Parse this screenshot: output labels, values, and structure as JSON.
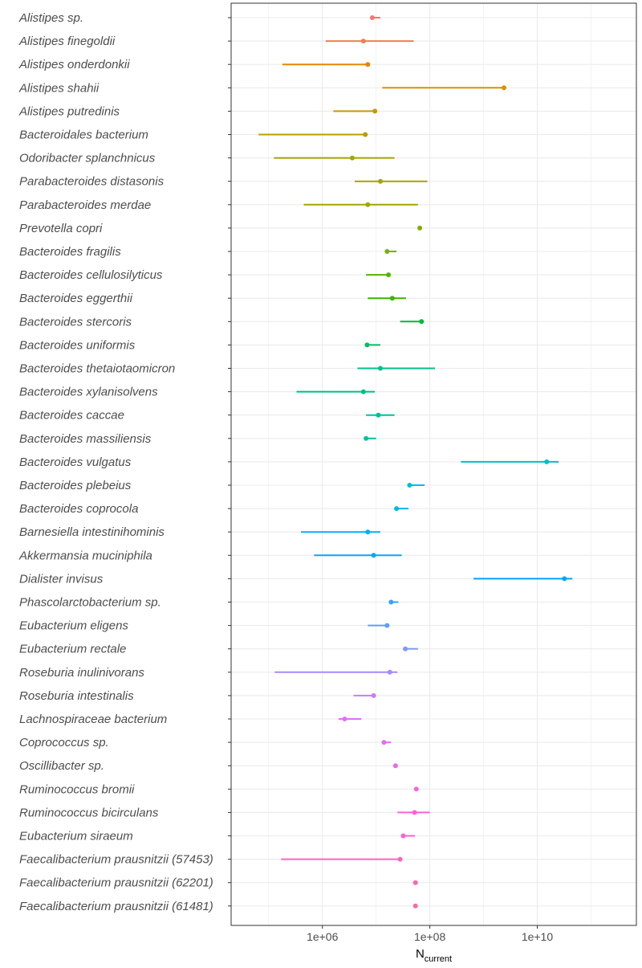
{
  "chart_data": {
    "type": "scatter",
    "subtype": "point-range (dot with horizontal interval)",
    "xscale": "log10",
    "xlim": [
      20000,
      700000000000
    ],
    "xticks": [
      {
        "value": 1000000,
        "label": "1e+06"
      },
      {
        "value": 100000000,
        "label": "1e+08"
      },
      {
        "value": 10000000000,
        "label": "1e+10"
      }
    ],
    "xlabel": "N",
    "xlabel_subscript": "current",
    "ylabel": "",
    "grid": true,
    "legend": "none",
    "colors": {
      "background": "#ffffff",
      "grid": "#ebebeb",
      "panel_border": "#333333",
      "tick_text": "#4d4d4d",
      "axis_title": "#000000"
    },
    "categories": [
      "Alistipes sp.",
      "Alistipes finegoldii",
      "Alistipes onderdonkii",
      "Alistipes shahii",
      "Alistipes putredinis",
      "Bacteroidales bacterium",
      "Odoribacter splanchnicus",
      "Parabacteroides distasonis",
      "Parabacteroides merdae",
      "Prevotella copri",
      "Bacteroides fragilis",
      "Bacteroides cellulosilyticus",
      "Bacteroides eggerthii",
      "Bacteroides stercoris",
      "Bacteroides uniformis",
      "Bacteroides thetaiotaomicron",
      "Bacteroides xylanisolvens",
      "Bacteroides caccae",
      "Bacteroides massiliensis",
      "Bacteroides vulgatus",
      "Bacteroides plebeius",
      "Bacteroides coprocola",
      "Barnesiella intestinihominis",
      "Akkermansia muciniphila",
      "Dialister invisus",
      "Phascolarctobacterium sp.",
      "Eubacterium eligens",
      "Eubacterium rectale",
      "Roseburia inulinivorans",
      "Roseburia intestinalis",
      "Lachnospiraceae bacterium",
      "Coprococcus sp.",
      "Oscillibacter sp.",
      "Ruminococcus bromii",
      "Ruminococcus bicirculans",
      "Eubacterium siraeum",
      "Faecalibacterium prausnitzii (57453)",
      "Faecalibacterium prausnitzii (62201)",
      "Faecalibacterium prausnitzii (61481)"
    ],
    "points": [
      {
        "value": 8500000.0,
        "low": 8500000.0,
        "high": 12000000.0,
        "color": "#F8766D"
      },
      {
        "value": 5800000.0,
        "low": 1150000.0,
        "high": 50000000.0,
        "color": "#F07F4F"
      },
      {
        "value": 7000000.0,
        "low": 180000.0,
        "high": 7000000.0,
        "color": "#E58700"
      },
      {
        "value": 2400000000.0,
        "low": 13000000.0,
        "high": 2400000000.0,
        "color": "#D89000"
      },
      {
        "value": 9500000.0,
        "low": 1600000.0,
        "high": 9500000.0,
        "color": "#C99800"
      },
      {
        "value": 6300000.0,
        "low": 65000.0,
        "high": 6300000.0,
        "color": "#B79F00"
      },
      {
        "value": 3600000.0,
        "low": 125000.0,
        "high": 22000000.0,
        "color": "#A3A500"
      },
      {
        "value": 12000000.0,
        "low": 4000000.0,
        "high": 90000000.0,
        "color": "#A3A500"
      },
      {
        "value": 7000000.0,
        "low": 450000.0,
        "high": 60000000.0,
        "color": "#A3A500"
      },
      {
        "value": 65000000.0,
        "low": 65000000.0,
        "high": 65000000.0,
        "color": "#7CAE00"
      },
      {
        "value": 16000000.0,
        "low": 16000000.0,
        "high": 24000000.0,
        "color": "#7CAE00"
      },
      {
        "value": 17000000.0,
        "low": 6500000.0,
        "high": 17000000.0,
        "color": "#53B400"
      },
      {
        "value": 20000000.0,
        "low": 7000000.0,
        "high": 36000000.0,
        "color": "#39B600"
      },
      {
        "value": 70000000.0,
        "low": 28000000.0,
        "high": 70000000.0,
        "color": "#00BA38"
      },
      {
        "value": 6800000.0,
        "low": 6800000.0,
        "high": 12000000.0,
        "color": "#00BE67"
      },
      {
        "value": 12000000.0,
        "low": 4500000.0,
        "high": 125000000.0,
        "color": "#00C08B"
      },
      {
        "value": 5800000.0,
        "low": 330000.0,
        "high": 9500000.0,
        "color": "#00BF7D"
      },
      {
        "value": 11000000.0,
        "low": 6500000.0,
        "high": 22000000.0,
        "color": "#00C19A"
      },
      {
        "value": 6500000.0,
        "low": 6500000.0,
        "high": 10000000.0,
        "color": "#00C1A3"
      },
      {
        "value": 15000000000.0,
        "low": 380000000.0,
        "high": 25000000000.0,
        "color": "#00BFC4"
      },
      {
        "value": 42000000.0,
        "low": 42000000.0,
        "high": 80000000.0,
        "color": "#00BCD8"
      },
      {
        "value": 24000000.0,
        "low": 24000000.0,
        "high": 40000000.0,
        "color": "#00B8E7"
      },
      {
        "value": 7000000.0,
        "low": 400000.0,
        "high": 12000000.0,
        "color": "#00B0F6"
      },
      {
        "value": 9000000.0,
        "low": 700000.0,
        "high": 30000000.0,
        "color": "#00A9FF"
      },
      {
        "value": 32000000000.0,
        "low": 650000000.0,
        "high": 45000000000.0,
        "color": "#00A5FF"
      },
      {
        "value": 19000000.0,
        "low": 19000000.0,
        "high": 26000000.0,
        "color": "#35A2FF"
      },
      {
        "value": 16000000.0,
        "low": 7000000.0,
        "high": 16000000.0,
        "color": "#619CFF"
      },
      {
        "value": 35000000.0,
        "low": 35000000.0,
        "high": 60000000.0,
        "color": "#7F96FF"
      },
      {
        "value": 18000000.0,
        "low": 130000.0,
        "high": 25000000.0,
        "color": "#A58AFF"
      },
      {
        "value": 9000000.0,
        "low": 3800000.0,
        "high": 9000000.0,
        "color": "#C77CFF"
      },
      {
        "value": 2600000.0,
        "low": 2000000.0,
        "high": 5300000.0,
        "color": "#DC71FA"
      },
      {
        "value": 14000000.0,
        "low": 14000000.0,
        "high": 19000000.0,
        "color": "#E76BF3"
      },
      {
        "value": 23000000.0,
        "low": 23000000.0,
        "high": 23000000.0,
        "color": "#EF67EB"
      },
      {
        "value": 56000000.0,
        "low": 56000000.0,
        "high": 56000000.0,
        "color": "#F564E3"
      },
      {
        "value": 52000000.0,
        "low": 25000000.0,
        "high": 100000000.0,
        "color": "#FA62D8"
      },
      {
        "value": 32000000.0,
        "low": 32000000.0,
        "high": 53000000.0,
        "color": "#FD61D1"
      },
      {
        "value": 28000000.0,
        "low": 170000.0,
        "high": 28000000.0,
        "color": "#FE63BF"
      },
      {
        "value": 54000000.0,
        "low": 54000000.0,
        "high": 54000000.0,
        "color": "#FF64B0"
      },
      {
        "value": 54000000.0,
        "low": 54000000.0,
        "high": 54000000.0,
        "color": "#FF67A4"
      }
    ]
  }
}
